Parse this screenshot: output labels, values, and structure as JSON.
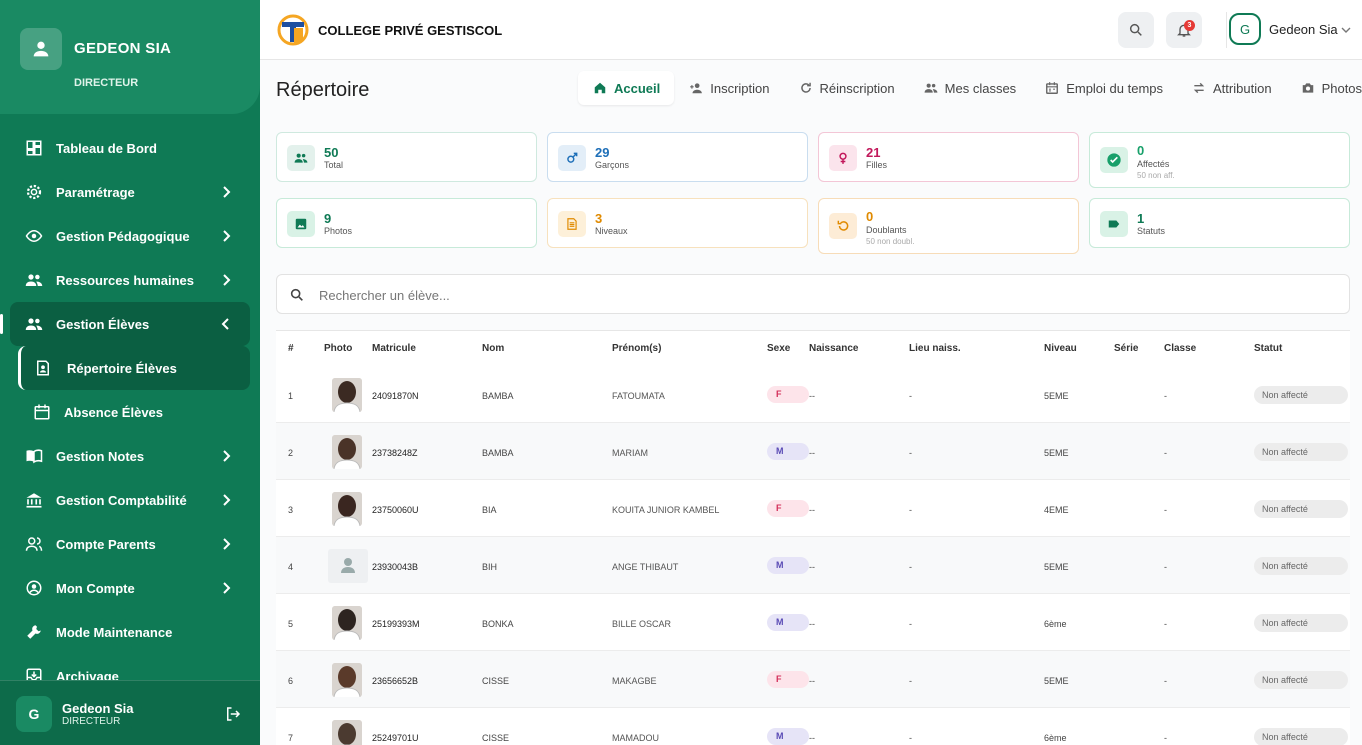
{
  "sidebar": {
    "profile": {
      "name": "GEDEON SIA",
      "role": "DIRECTEUR"
    },
    "menu": [
      {
        "label": "Tableau de Bord",
        "icon": "dashboard-icon",
        "chevron": false
      },
      {
        "label": "Paramétrage",
        "icon": "gear-icon",
        "chevron": true
      },
      {
        "label": "Gestion Pédagogique",
        "icon": "eye-icon",
        "chevron": true
      },
      {
        "label": "Ressources humaines",
        "icon": "people-icon",
        "chevron": true
      },
      {
        "label": "Gestion Élèves",
        "icon": "people-icon",
        "chevron": true,
        "active": true
      }
    ],
    "submenu": [
      {
        "label": "Répertoire Élèves",
        "icon": "contact-icon",
        "active": true
      },
      {
        "label": "Absence Élèves",
        "icon": "calendar-icon"
      }
    ],
    "menu2": [
      {
        "label": "Gestion Notes",
        "icon": "book-icon",
        "chevron": true
      },
      {
        "label": "Gestion Comptabilité",
        "icon": "bank-icon",
        "chevron": true
      },
      {
        "label": "Compte Parents",
        "icon": "parents-icon",
        "chevron": true
      },
      {
        "label": "Mon Compte",
        "icon": "account-icon",
        "chevron": true
      },
      {
        "label": "Mode Maintenance",
        "icon": "wrench-icon",
        "chevron": false
      },
      {
        "label": "Archivage",
        "icon": "archive-icon",
        "chevron": false
      }
    ],
    "footer": {
      "initial": "G",
      "name": "Gedeon Sia",
      "role": "DIRECTEUR"
    }
  },
  "topbar": {
    "school_name": "COLLEGE PRIVÉ GESTISCOL",
    "notification_count": "3",
    "user_initial": "G",
    "user_name": "Gedeon Sia"
  },
  "page": {
    "title": "Répertoire",
    "tabs": [
      {
        "label": "Accueil",
        "icon": "home-icon",
        "active": true
      },
      {
        "label": "Inscription",
        "icon": "add-user-icon"
      },
      {
        "label": "Réinscription",
        "icon": "refresh-icon"
      },
      {
        "label": "Mes classes",
        "icon": "people-icon"
      },
      {
        "label": "Emploi du temps",
        "icon": "calendar-icon"
      },
      {
        "label": "Attribution",
        "icon": "swap-icon"
      },
      {
        "label": "Photos",
        "icon": "camera-icon"
      }
    ]
  },
  "stats": [
    {
      "value": "50",
      "label": "Total",
      "sub": "",
      "color": "#0f7a55",
      "bg": "#e3f1ec",
      "border": "#cfe9df",
      "icon": "people-icon"
    },
    {
      "value": "29",
      "label": "Garçons",
      "sub": "",
      "color": "#1e6fb8",
      "bg": "#e3eef8",
      "border": "#c9ddef",
      "icon": "male-icon"
    },
    {
      "value": "21",
      "label": "Filles",
      "sub": "",
      "color": "#c2185b",
      "bg": "#fbe4ec",
      "border": "#f3c6d6",
      "icon": "female-icon"
    },
    {
      "value": "0",
      "label": "Affectés",
      "sub": "50 non aff.",
      "color": "#18a06a",
      "bg": "#d9f2e6",
      "border": "#c7ead9",
      "icon": "check-circle-icon"
    },
    {
      "value": "9",
      "label": "Photos",
      "sub": "",
      "color": "#0f7a55",
      "bg": "#d9f2e6",
      "border": "#c7ead9",
      "icon": "image-icon"
    },
    {
      "value": "3",
      "label": "Niveaux",
      "sub": "",
      "color": "#e08a00",
      "bg": "#fdf0d9",
      "border": "#f7e1bd",
      "icon": "list-icon"
    },
    {
      "value": "0",
      "label": "Doublants",
      "sub": "50 non doubl.",
      "color": "#e08a00",
      "bg": "#fdecd6",
      "border": "#f7dcb8",
      "icon": "undo-icon"
    },
    {
      "value": "1",
      "label": "Statuts",
      "sub": "",
      "color": "#0f7a55",
      "bg": "#d9f2e6",
      "border": "#c7ead9",
      "icon": "tag-icon"
    }
  ],
  "search": {
    "placeholder": "Rechercher un élève...",
    "value": ""
  },
  "table": {
    "columns": [
      "#",
      "Photo",
      "Matricule",
      "Nom",
      "Prénom(s)",
      "Sexe",
      "Naissance",
      "Lieu naiss.",
      "Niveau",
      "Série",
      "Classe",
      "Statut"
    ],
    "rows": [
      {
        "num": "1",
        "photo": true,
        "matricule": "24091870N",
        "nom": "BAMBA",
        "prenom": "FATOUMATA",
        "sexe": "F",
        "naissance": "--",
        "lieu": "-",
        "niveau": "5EME",
        "serie": "",
        "classe": "-",
        "statut": "Non affecté"
      },
      {
        "num": "2",
        "photo": true,
        "matricule": "23738248Z",
        "nom": "BAMBA",
        "prenom": "MARIAM",
        "sexe": "M",
        "naissance": "--",
        "lieu": "-",
        "niveau": "5EME",
        "serie": "",
        "classe": "-",
        "statut": "Non affecté"
      },
      {
        "num": "3",
        "photo": true,
        "matricule": "23750060U",
        "nom": "BIA",
        "prenom": "KOUITA JUNIOR KAMBEL",
        "sexe": "F",
        "naissance": "--",
        "lieu": "-",
        "niveau": "4EME",
        "serie": "",
        "classe": "-",
        "statut": "Non affecté"
      },
      {
        "num": "4",
        "photo": false,
        "matricule": "23930043B",
        "nom": "BIH",
        "prenom": "ANGE THIBAUT",
        "sexe": "M",
        "naissance": "--",
        "lieu": "-",
        "niveau": "5EME",
        "serie": "",
        "classe": "-",
        "statut": "Non affecté"
      },
      {
        "num": "5",
        "photo": true,
        "matricule": "25199393M",
        "nom": "BONKA",
        "prenom": "BILLE OSCAR",
        "sexe": "M",
        "naissance": "--",
        "lieu": "-",
        "niveau": "6ème",
        "serie": "",
        "classe": "-",
        "statut": "Non affecté"
      },
      {
        "num": "6",
        "photo": true,
        "matricule": "23656652B",
        "nom": "CISSE",
        "prenom": "MAKAGBE",
        "sexe": "F",
        "naissance": "--",
        "lieu": "-",
        "niveau": "5EME",
        "serie": "",
        "classe": "-",
        "statut": "Non affecté"
      },
      {
        "num": "7",
        "photo": true,
        "matricule": "25249701U",
        "nom": "CISSE",
        "prenom": "MAMADOU",
        "sexe": "M",
        "naissance": "--",
        "lieu": "-",
        "niveau": "6ème",
        "serie": "",
        "classe": "-",
        "statut": "Non affecté"
      }
    ]
  },
  "colors": {
    "brand": "#0f7a55",
    "brand_dark": "#0b5f42",
    "female_bg": "#fde4ea",
    "female_fg": "#d32f5a",
    "male_bg": "#e6e4f7",
    "male_fg": "#5a4bb5"
  }
}
